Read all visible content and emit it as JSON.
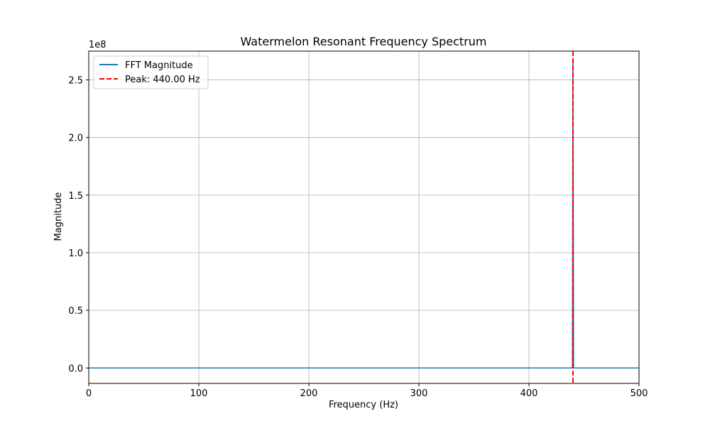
{
  "chart_data": {
    "type": "line",
    "title": "Watermelon Resonant Frequency Spectrum",
    "xlabel": "Frequency (Hz)",
    "ylabel": "Magnitude",
    "y_offset_label": "1e8",
    "xlim": [
      0,
      500
    ],
    "ylim": [
      -0.134,
      2.75
    ],
    "y_scale_factor": 100000000,
    "xticks": [
      0,
      100,
      200,
      300,
      400,
      500
    ],
    "xtick_labels": [
      "0",
      "100",
      "200",
      "300",
      "400",
      "500"
    ],
    "yticks": [
      0.0,
      0.5,
      1.0,
      1.5,
      2.0,
      2.5
    ],
    "ytick_labels": [
      "0.0",
      "0.5",
      "1.0",
      "1.5",
      "2.0",
      "2.5"
    ],
    "grid": true,
    "legend_position": "top-left",
    "series": [
      {
        "name": "FFT Magnitude",
        "color": "#1f77b4",
        "style": "solid",
        "x": [
          0,
          439.5,
          440,
          440.5,
          500
        ],
        "y": [
          0,
          0,
          2.67,
          0,
          0
        ]
      }
    ],
    "vlines": [
      {
        "name": "Peak: 440.00 Hz",
        "x": 440,
        "color": "#ff0000",
        "style": "dashed"
      }
    ]
  }
}
